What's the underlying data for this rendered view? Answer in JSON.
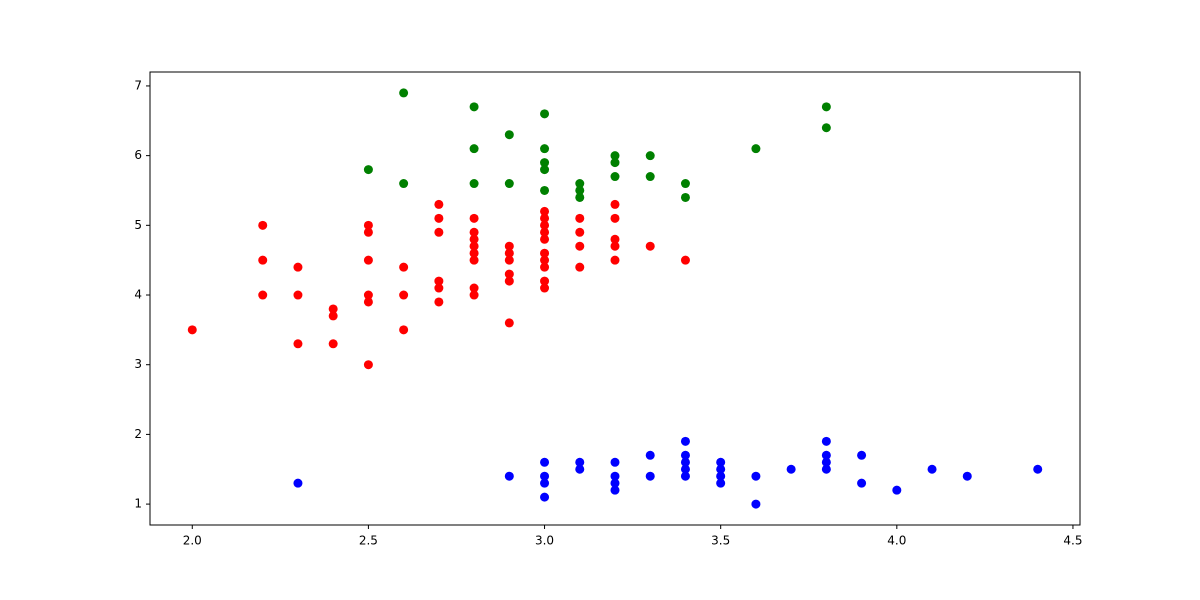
{
  "chart_data": {
    "type": "scatter",
    "xlim": [
      1.88,
      4.52
    ],
    "ylim": [
      0.7,
      7.2
    ],
    "xticks": [
      {
        "value": 2,
        "label": "2.0"
      },
      2.5,
      {
        "value": 3,
        "label": "3.0"
      },
      3.5,
      {
        "value": 4,
        "label": "4.0"
      },
      4.5
    ],
    "yticks": [
      1,
      2,
      3,
      4,
      5,
      6,
      7
    ],
    "grid": false,
    "series": [
      {
        "color": "#0000ff",
        "x": [
          2.3,
          2.9,
          3.0,
          3.0,
          3.0,
          3.0,
          3.1,
          3.1,
          3.2,
          3.2,
          3.2,
          3.2,
          3.3,
          3.3,
          3.4,
          3.4,
          3.4,
          3.4,
          3.4,
          3.5,
          3.5,
          3.5,
          3.5,
          3.6,
          3.6,
          3.7,
          3.8,
          3.8,
          3.8,
          3.8,
          3.9,
          3.9,
          4.0,
          4.1,
          4.2,
          4.4
        ],
        "values": [
          1.3,
          1.4,
          1.6,
          1.4,
          1.3,
          1.1,
          1.6,
          1.5,
          1.6,
          1.4,
          1.3,
          1.2,
          1.7,
          1.4,
          1.9,
          1.7,
          1.6,
          1.5,
          1.4,
          1.6,
          1.5,
          1.4,
          1.3,
          1.4,
          1.0,
          1.5,
          1.9,
          1.7,
          1.6,
          1.5,
          1.7,
          1.3,
          1.2,
          1.5,
          1.4,
          1.5
        ]
      },
      {
        "color": "#ff0000",
        "x": [
          2.0,
          2.2,
          2.2,
          2.2,
          2.3,
          2.3,
          2.3,
          2.4,
          2.4,
          2.4,
          2.5,
          2.5,
          2.5,
          2.5,
          2.5,
          2.5,
          2.6,
          2.6,
          2.6,
          2.7,
          2.7,
          2.7,
          2.7,
          2.7,
          2.7,
          2.8,
          2.8,
          2.8,
          2.8,
          2.8,
          2.8,
          2.8,
          2.8,
          2.9,
          2.9,
          2.9,
          2.9,
          2.9,
          2.9,
          3.0,
          3.0,
          3.0,
          3.0,
          3.0,
          3.0,
          3.0,
          3.0,
          3.0,
          3.0,
          3.1,
          3.1,
          3.1,
          3.1,
          3.2,
          3.2,
          3.2,
          3.2,
          3.2,
          3.3,
          3.4
        ],
        "values": [
          3.5,
          5.0,
          4.5,
          4.0,
          4.4,
          4.0,
          3.3,
          3.8,
          3.7,
          3.3,
          5.0,
          4.9,
          4.5,
          4.0,
          3.9,
          3.0,
          4.4,
          4.0,
          3.5,
          5.3,
          5.1,
          4.9,
          4.2,
          4.1,
          3.9,
          5.1,
          4.9,
          4.8,
          4.7,
          4.6,
          4.5,
          4.1,
          4.0,
          4.7,
          4.6,
          4.5,
          4.3,
          4.2,
          3.6,
          5.2,
          5.1,
          5.0,
          4.9,
          4.8,
          4.6,
          4.5,
          4.4,
          4.2,
          4.1,
          5.1,
          4.9,
          4.7,
          4.4,
          5.3,
          5.1,
          4.8,
          4.7,
          4.5,
          4.7,
          4.5
        ]
      },
      {
        "color": "#008000",
        "x": [
          2.5,
          2.6,
          2.6,
          2.8,
          2.8,
          2.8,
          2.9,
          2.9,
          3.0,
          3.0,
          3.0,
          3.0,
          3.0,
          3.1,
          3.1,
          3.1,
          3.2,
          3.2,
          3.2,
          3.3,
          3.3,
          3.4,
          3.4,
          3.6,
          3.8,
          3.8
        ],
        "values": [
          5.8,
          6.9,
          5.6,
          6.7,
          6.1,
          5.6,
          6.3,
          5.6,
          6.6,
          6.1,
          5.9,
          5.8,
          5.5,
          5.6,
          5.5,
          5.4,
          6.0,
          5.9,
          5.7,
          6.0,
          5.7,
          5.6,
          5.4,
          6.1,
          6.7,
          6.4
        ]
      }
    ]
  }
}
